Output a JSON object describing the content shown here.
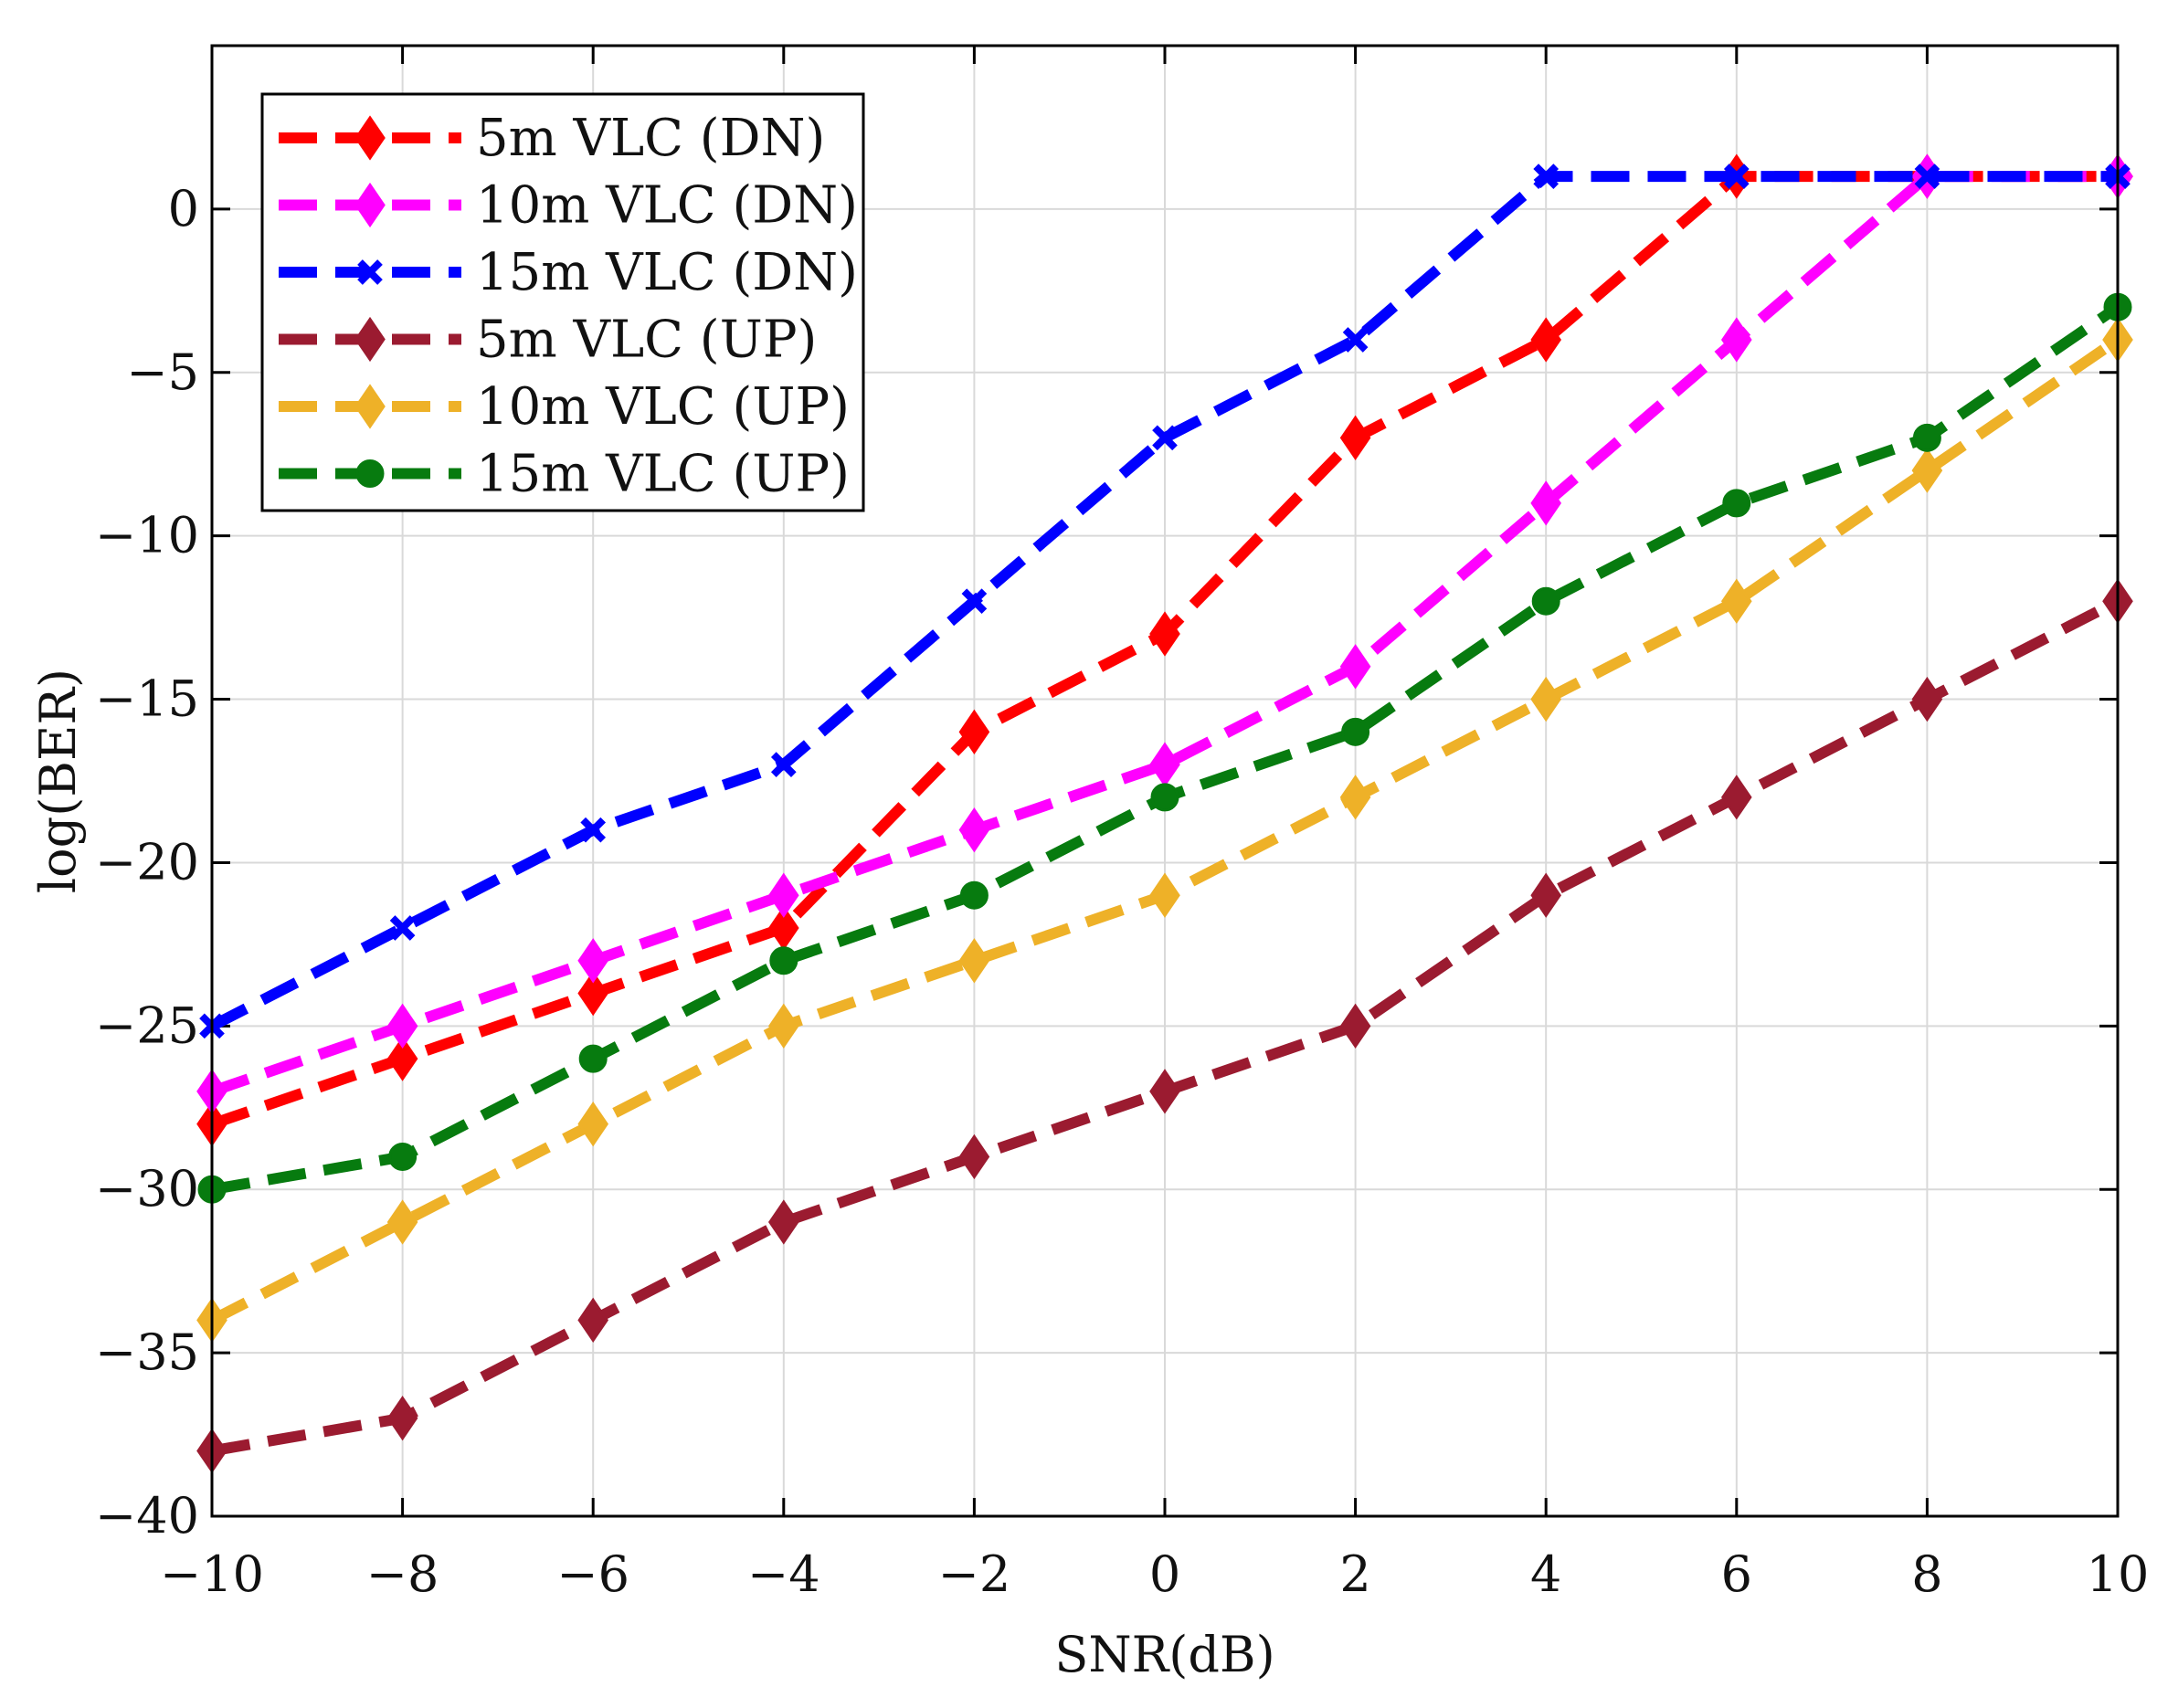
{
  "chart_data": {
    "type": "line",
    "title": "",
    "xlabel": "SNR(dB)",
    "ylabel": "log(BER)",
    "xlim": [
      -10,
      10
    ],
    "ylim": [
      -40,
      5
    ],
    "x": [
      -10,
      -8,
      -6,
      -4,
      -2,
      0,
      2,
      4,
      6,
      8,
      10
    ],
    "xticks": [
      -10,
      -8,
      -6,
      -4,
      -2,
      0,
      2,
      4,
      6,
      8,
      10
    ],
    "xtick_labels": [
      "−10",
      "−8",
      "−6",
      "−4",
      "−2",
      "0",
      "2",
      "4",
      "6",
      "8",
      "10"
    ],
    "yticks": [
      0,
      -5,
      -10,
      -15,
      -20,
      -25,
      -30,
      -35,
      -40
    ],
    "ytick_labels": [
      "0",
      "−5",
      "−10",
      "−15",
      "−20",
      "−25",
      "−30",
      "−35",
      "−40"
    ],
    "grid": true,
    "legend_position": "top-left",
    "series": [
      {
        "name": "5m VLC (DN)",
        "color": "#ff0000",
        "marker": "diamond",
        "values": [
          -28,
          -26,
          -24,
          -22,
          -16,
          -13,
          -7,
          -4,
          1,
          1,
          1
        ]
      },
      {
        "name": "10m VLC (DN)",
        "color": "#ff00ff",
        "marker": "diamond",
        "values": [
          -27,
          -25,
          -23,
          -21,
          -19,
          -17,
          -14,
          -9,
          -4,
          1,
          1
        ]
      },
      {
        "name": "15m VLC (DN)",
        "color": "#0000ff",
        "marker": "cross",
        "values": [
          -25,
          -22,
          -19,
          -17,
          -12,
          -7,
          -4,
          1,
          1,
          1,
          1
        ]
      },
      {
        "name": "5m VLC (UP)",
        "color": "#9b1b30",
        "marker": "diamond",
        "values": [
          -38,
          -37,
          -34,
          -31,
          -29,
          -27,
          -25,
          -21,
          -18,
          -15,
          -12
        ]
      },
      {
        "name": "10m VLC (UP)",
        "color": "#eeb128",
        "marker": "diamond",
        "values": [
          -34,
          -31,
          -28,
          -25,
          -23,
          -21,
          -18,
          -15,
          -12,
          -8,
          -4
        ]
      },
      {
        "name": "15m VLC (UP)",
        "color": "#077b0f",
        "marker": "circle",
        "values": [
          -30,
          -29,
          -26,
          -23,
          -21,
          -18,
          -16,
          -12,
          -9,
          -7,
          -3
        ]
      }
    ]
  }
}
